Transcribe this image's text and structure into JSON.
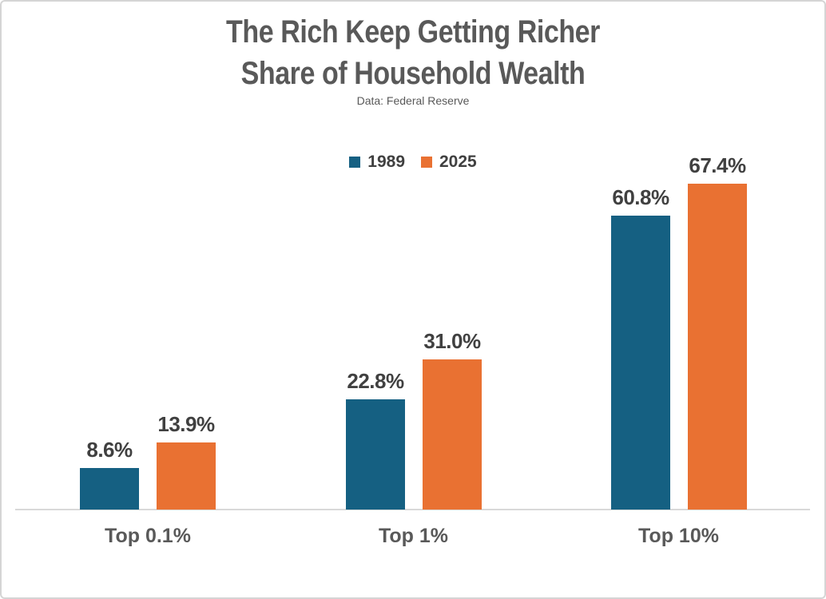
{
  "header": {
    "title_line1": "The Rich Keep Getting Richer",
    "title_line2": "Share of Household Wealth",
    "subtitle": "Data: Federal Reserve"
  },
  "legend": {
    "items": [
      {
        "label": "1989",
        "color": "#156082"
      },
      {
        "label": "2025",
        "color": "#E97132"
      }
    ]
  },
  "chart_data": {
    "type": "bar",
    "title": "The Rich Keep Getting Richer",
    "subtitle": "Share of Household Wealth",
    "source_note": "Data: Federal Reserve",
    "categories": [
      "Top 0.1%",
      "Top 1%",
      "Top 10%"
    ],
    "series": [
      {
        "name": "1989",
        "color": "#156082",
        "values": [
          8.6,
          22.8,
          60.8
        ]
      },
      {
        "name": "2025",
        "color": "#E97132",
        "values": [
          13.9,
          31.0,
          67.4
        ]
      }
    ],
    "value_label_suffix": "%",
    "value_labels_shown": [
      "8.6%",
      "22.8%",
      "60.8%",
      "13.9%",
      "31.0%",
      "67.4%"
    ],
    "ylim": [
      0,
      78
    ],
    "xlabel": "",
    "ylabel": "",
    "grid": false,
    "y_axis_shown": false,
    "legend_position": "top-center",
    "colors": {
      "title_text": "#595959",
      "subtitle_text": "#595959",
      "value_label_text": "#404040",
      "category_label_text": "#595959",
      "legend_text": "#404040",
      "axis_line": "#D9D9D9",
      "background": "#FFFFFF",
      "border": "#D5D5D5"
    }
  }
}
